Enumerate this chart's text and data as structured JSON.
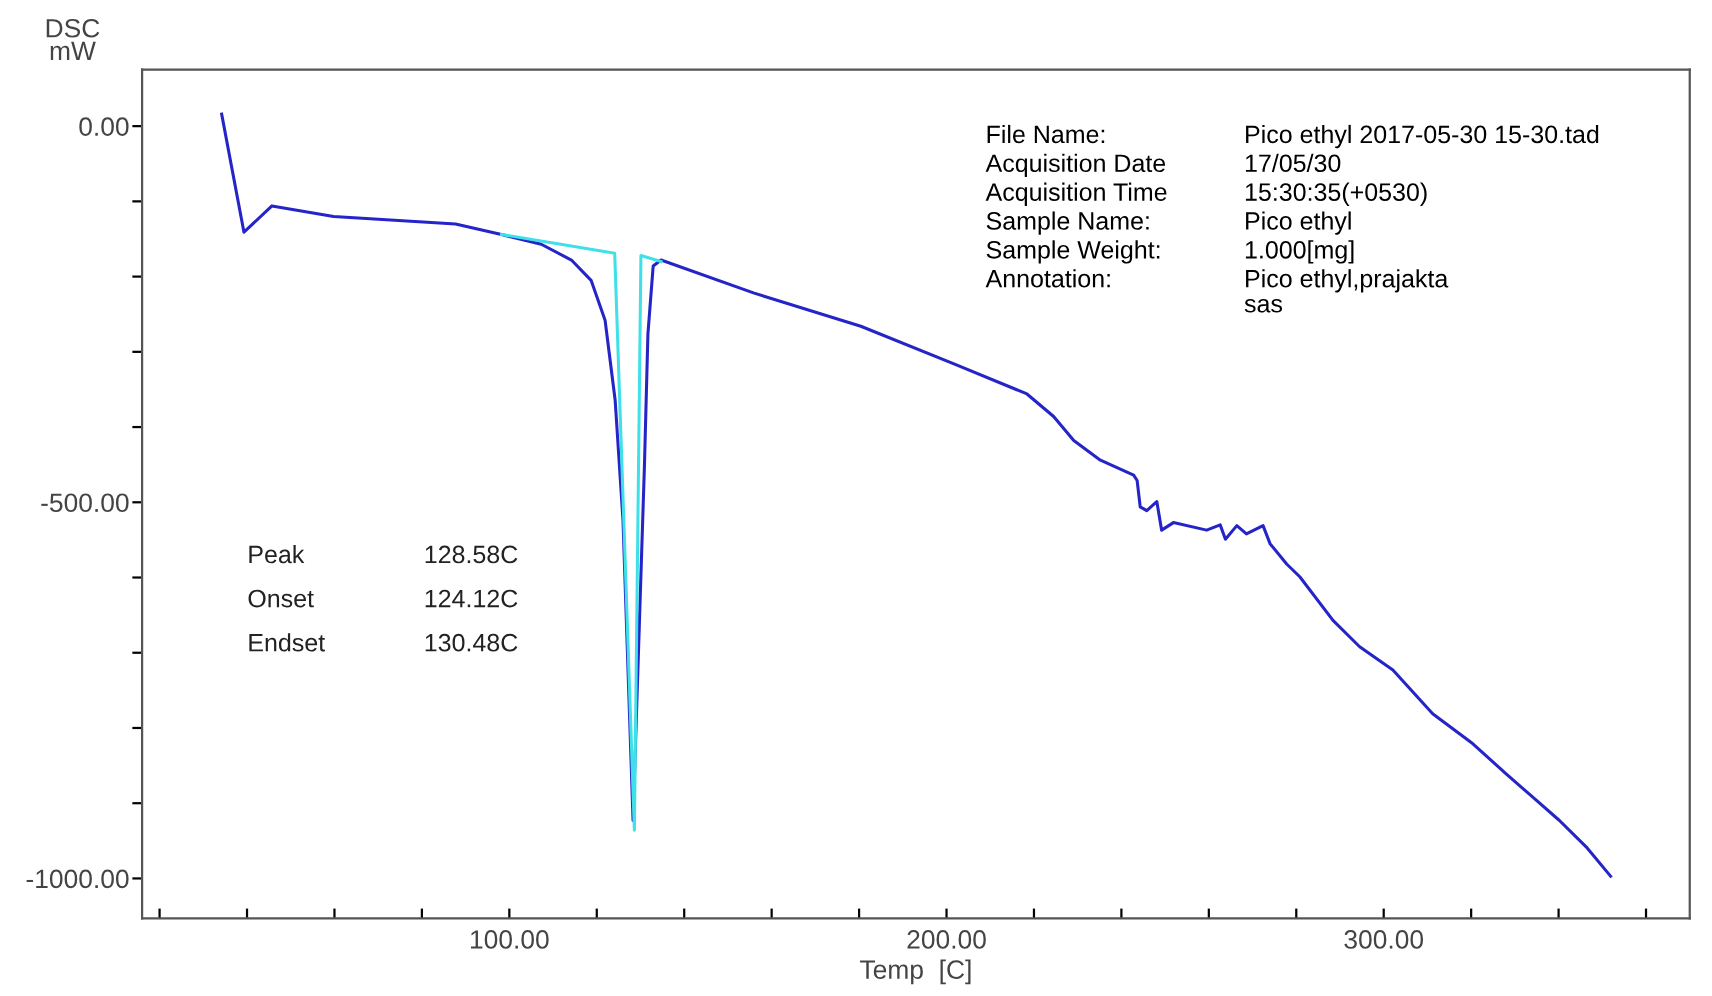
{
  "chart_data": {
    "type": "line",
    "xlabel": "Temp  [C]",
    "ylabel": "DSC\nmW",
    "xlim": [
      16,
      370
    ],
    "ylim": [
      -1053,
      75
    ],
    "xticks": [
      {
        "value": 20,
        "label": null
      },
      {
        "value": 40,
        "label": null
      },
      {
        "value": 60,
        "label": null
      },
      {
        "value": 80,
        "label": null
      },
      {
        "value": 100,
        "label": "100.00"
      },
      {
        "value": 120,
        "label": null
      },
      {
        "value": 140,
        "label": null
      },
      {
        "value": 160,
        "label": null
      },
      {
        "value": 180,
        "label": null
      },
      {
        "value": 200,
        "label": "200.00"
      },
      {
        "value": 220,
        "label": null
      },
      {
        "value": 240,
        "label": null
      },
      {
        "value": 260,
        "label": null
      },
      {
        "value": 280,
        "label": null
      },
      {
        "value": 300,
        "label": "300.00"
      },
      {
        "value": 320,
        "label": null
      },
      {
        "value": 340,
        "label": null
      },
      {
        "value": 360,
        "label": null
      }
    ],
    "yticks": [
      {
        "value": 0,
        "label": "0.00"
      },
      {
        "value": -100,
        "label": null
      },
      {
        "value": -200,
        "label": null
      },
      {
        "value": -300,
        "label": null
      },
      {
        "value": -400,
        "label": null
      },
      {
        "value": -500,
        "label": "-500.00"
      },
      {
        "value": -600,
        "label": null
      },
      {
        "value": -700,
        "label": null
      },
      {
        "value": -800,
        "label": null
      },
      {
        "value": -900,
        "label": null
      },
      {
        "value": -1000,
        "label": "-1000.00"
      }
    ],
    "grid": false,
    "series": [
      {
        "color": "#2424c8",
        "x": [
          34.2,
          39.3,
          45.7,
          59.8,
          87.7,
          98.2,
          107.3,
          114.2,
          118.7,
          121.9,
          124.2,
          126.0,
          128.3,
          130.9,
          131.7,
          132.9,
          134.7,
          156.0,
          180.4,
          201.7,
          218.4,
          224.5,
          229.1,
          235.2,
          242.8,
          243.6,
          244.3,
          245.8,
          248.1,
          249.2,
          251.9,
          259.5,
          262.6,
          263.8,
          266.4,
          268.6,
          272.4,
          274.0,
          277.8,
          280.8,
          288.4,
          294.5,
          302.1,
          311.2,
          320.4,
          328.0,
          334.1,
          340.2,
          346.3,
          351.9
        ],
        "values": [
          16,
          -141,
          -106,
          -120,
          -130,
          -144,
          -157,
          -178,
          -205,
          -258,
          -364,
          -524,
          -923,
          -452,
          -276,
          -186,
          -178,
          -222,
          -266,
          -316,
          -356,
          -386,
          -418,
          -444,
          -464,
          -471,
          -506,
          -511,
          -499,
          -537,
          -527,
          -537,
          -530,
          -549,
          -531,
          -542,
          -531,
          -555,
          -582,
          -599,
          -657,
          -692,
          -723,
          -781,
          -821,
          -861,
          -892,
          -923,
          -958,
          -997
        ]
      },
      {
        "color": "#40e0e8",
        "x": [
          98.2,
          124.1,
          128.6,
          130.1,
          134.7
        ],
        "values": [
          -144,
          -169,
          -936,
          -172,
          -180
        ]
      }
    ],
    "annotations": [
      "File Name:\tPico ethyl 2017-05-30 15-30.tad",
      "Acquisition Date\t17/05/30",
      "Acquisition Time\t15:30:35(+0530)",
      "Sample Name:\tPico ethyl",
      "Sample Weight:\t1.000[mg]",
      "Annotation:\tPico ethyl,prajakta\nsas",
      "Peak\t128.58C",
      "Onset\t124.12C",
      "Endset\t130.48C"
    ]
  }
}
